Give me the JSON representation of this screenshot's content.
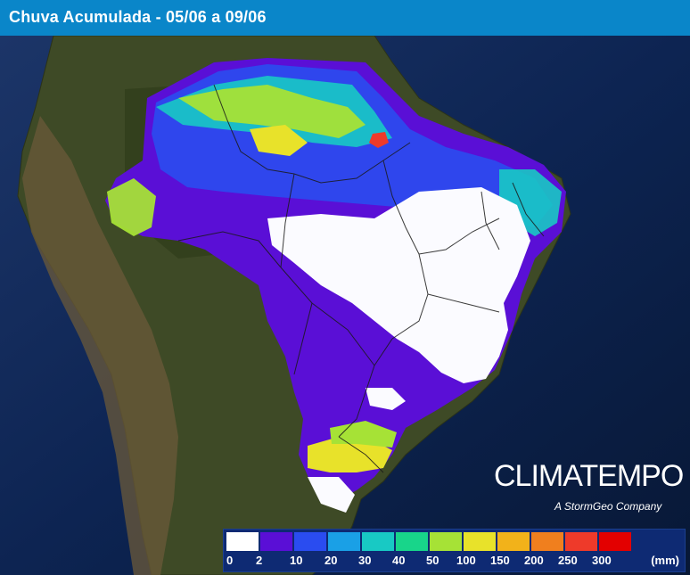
{
  "header": {
    "title": "Chuva Acumulada - 05/06 a 09/06"
  },
  "brand": {
    "name": "CLIMATEMPO",
    "tagline": "A StormGeo Company"
  },
  "legend": {
    "colors": [
      "#ffffff",
      "#5a0fd6",
      "#2a4cf0",
      "#1aa0e6",
      "#18c9c4",
      "#18d58a",
      "#a6e236",
      "#e8e22a",
      "#f2b21a",
      "#f07f1e",
      "#ee3a2a",
      "#e30000"
    ],
    "labels": [
      "0",
      "2",
      "10",
      "20",
      "30",
      "40",
      "50",
      "100",
      "150",
      "200",
      "250",
      "300"
    ],
    "unit": "(mm)"
  }
}
